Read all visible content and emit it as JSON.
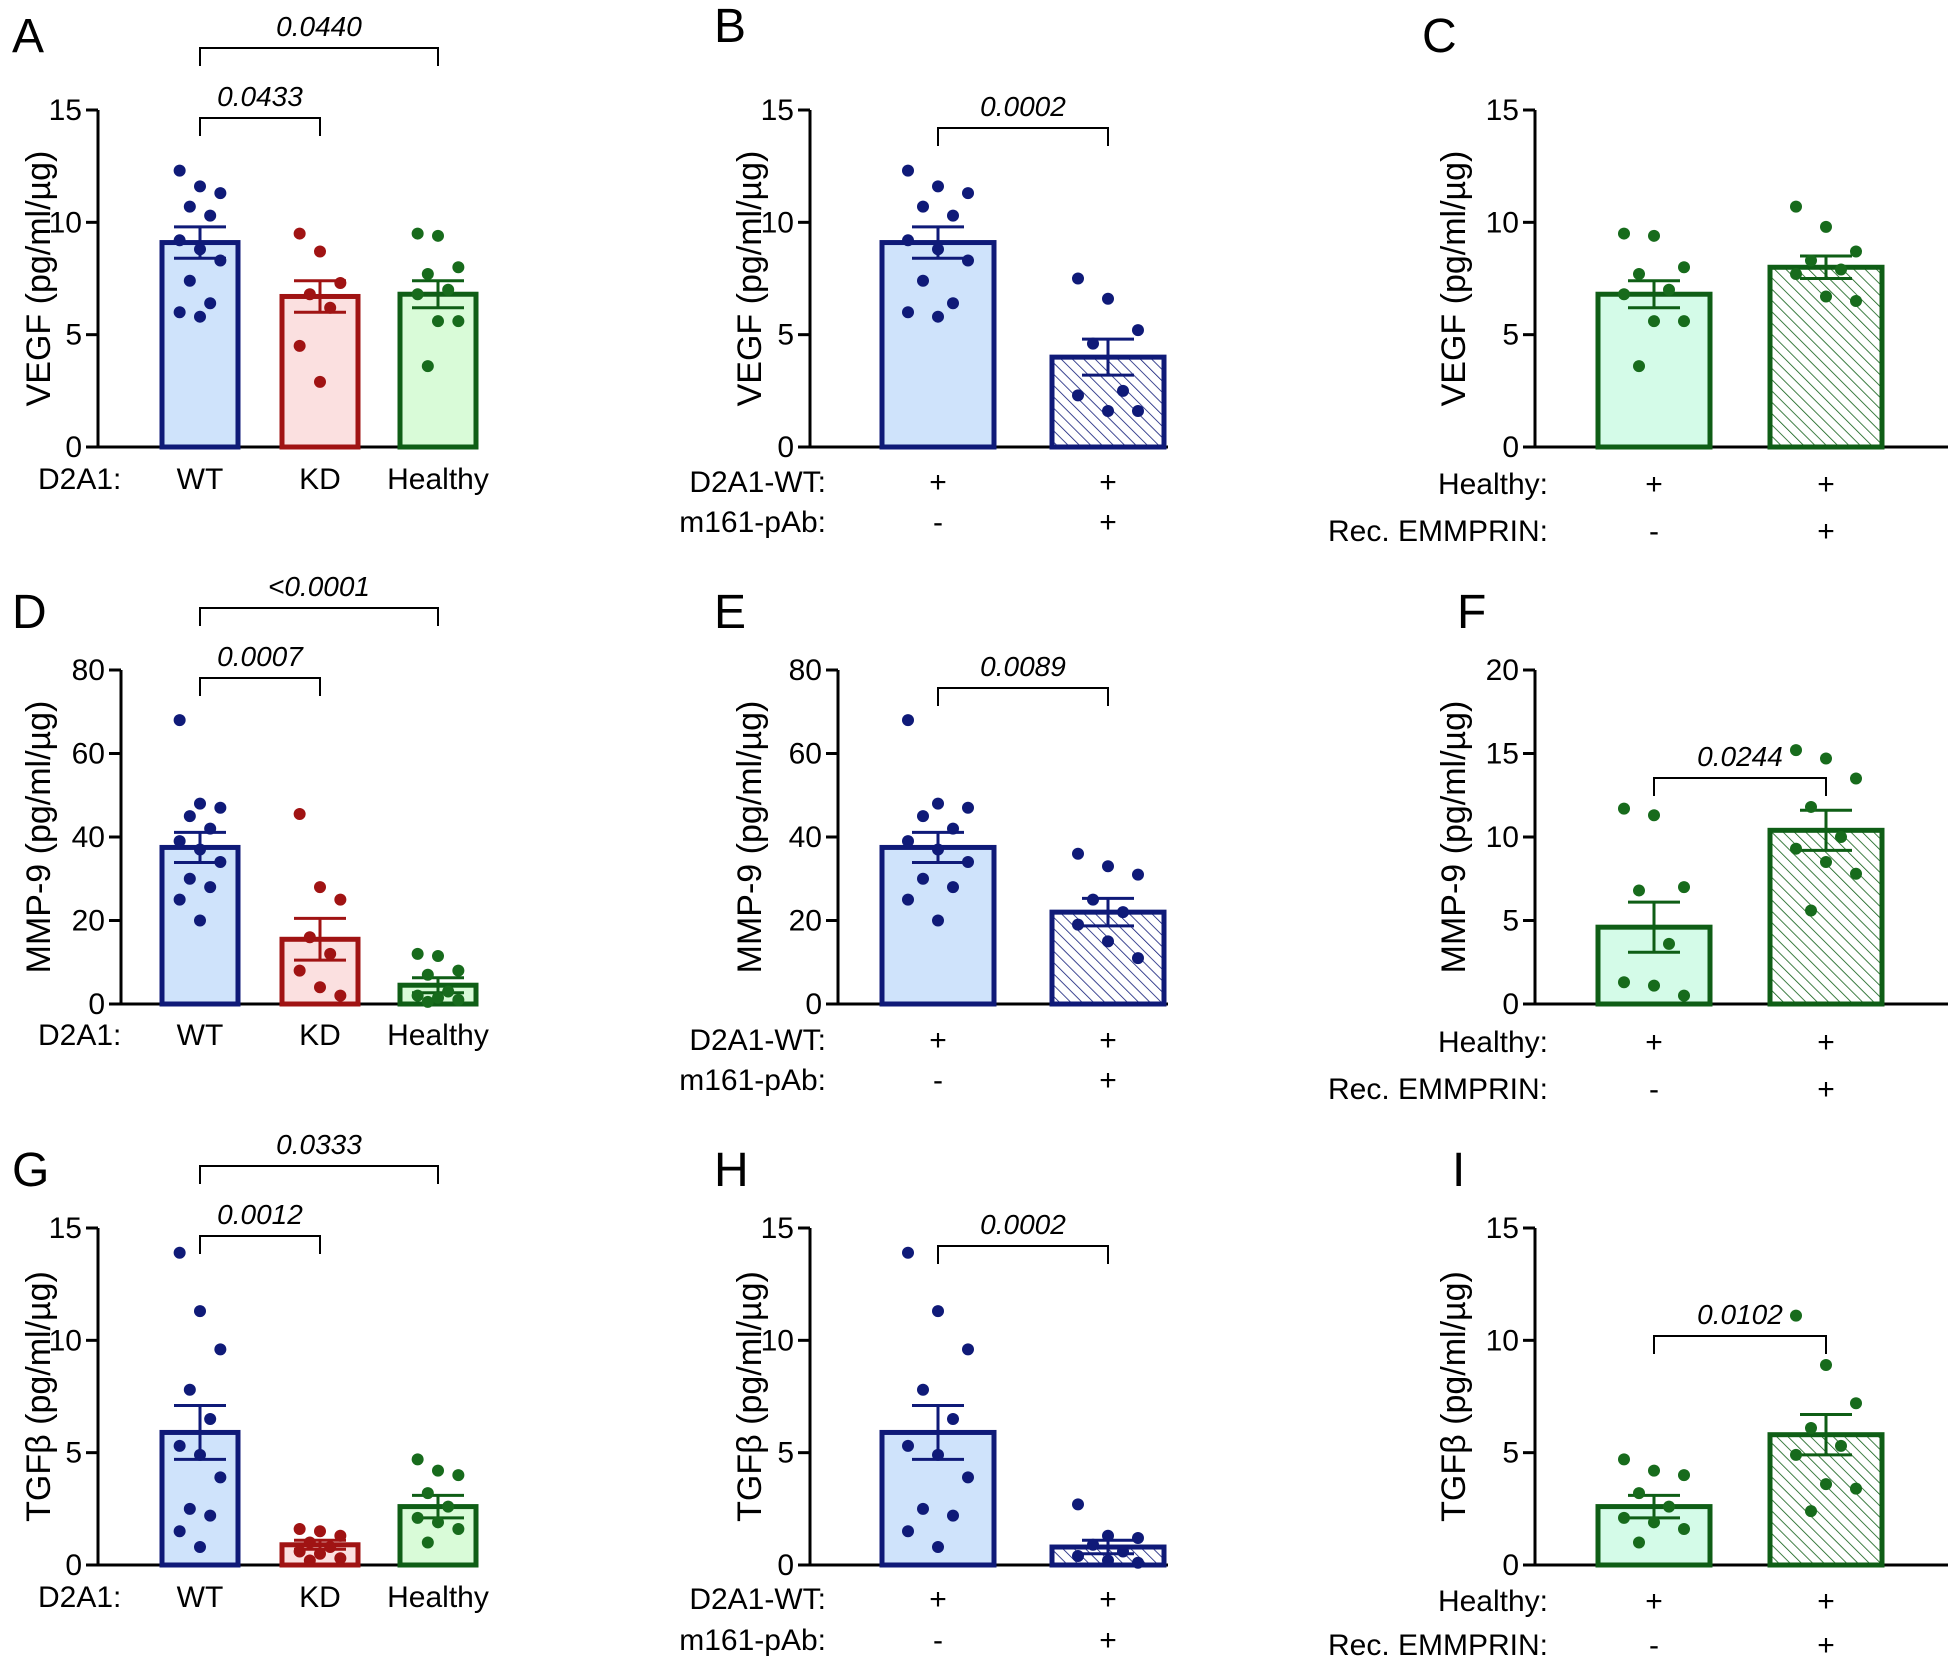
{
  "colors": {
    "blue_edge": "#0f1a78",
    "blue_fill": "#cfe3fb",
    "red_edge": "#a01313",
    "red_fill": "#fbe0e0",
    "green_edge": "#0f5e16",
    "green_fill": "#d9fbd8",
    "mint_fill": "#d4fbe8",
    "dot_blue": "#0f1a78",
    "dot_red": "#a01313",
    "dot_green": "#176b1c"
  },
  "chart_data": [
    {
      "panel": "A",
      "type": "bar",
      "ylabel": "VEGF (pg/ml/µg)",
      "ylim": [
        0,
        15
      ],
      "yticks": [
        0,
        5,
        10,
        15
      ],
      "rows": [
        {
          "label": "D2A1:",
          "values": [
            "WT",
            "KD",
            "Healthy"
          ]
        }
      ],
      "bars": [
        {
          "mean": 9.1,
          "sem": 0.7,
          "color": "blue",
          "fill": "blue_fill",
          "hatch": false,
          "points": [
            12.3,
            11.6,
            11.3,
            10.7,
            10.3,
            9.2,
            8.8,
            8.3,
            7.4,
            6.4,
            6.0,
            5.8
          ]
        },
        {
          "mean": 6.7,
          "sem": 0.7,
          "color": "red",
          "fill": "red_fill",
          "hatch": false,
          "points": [
            9.5,
            8.7,
            7.3,
            6.8,
            6.2,
            4.5,
            2.9
          ]
        },
        {
          "mean": 6.8,
          "sem": 0.6,
          "color": "green",
          "fill": "green_fill",
          "hatch": false,
          "points": [
            9.5,
            9.4,
            8.0,
            7.7,
            7.0,
            6.8,
            5.6,
            5.6,
            3.6
          ]
        }
      ],
      "brackets": [
        {
          "from": 0,
          "to": 1,
          "label": "0.0433",
          "level": 0
        },
        {
          "from": 0,
          "to": 2,
          "label": "0.0440",
          "level": 1
        }
      ]
    },
    {
      "panel": "B",
      "type": "bar",
      "ylabel": "VEGF (pg/ml/µg)",
      "ylim": [
        0,
        15
      ],
      "yticks": [
        0,
        5,
        10,
        15
      ],
      "rows": [
        {
          "label": "D2A1-WT:",
          "values": [
            "+",
            "+"
          ]
        },
        {
          "label": "m161-pAb:",
          "values": [
            "-",
            "+"
          ]
        }
      ],
      "bars": [
        {
          "mean": 9.1,
          "sem": 0.7,
          "color": "blue",
          "fill": "blue_fill",
          "hatch": false,
          "points": [
            12.3,
            11.6,
            11.3,
            10.7,
            10.3,
            9.2,
            8.8,
            8.3,
            7.4,
            6.4,
            6.0,
            5.8
          ]
        },
        {
          "mean": 4.0,
          "sem": 0.8,
          "color": "blue",
          "fill": "blue_fill",
          "hatch": true,
          "points": [
            7.5,
            6.6,
            5.2,
            4.6,
            2.5,
            2.3,
            1.6,
            1.6
          ]
        }
      ],
      "brackets": [
        {
          "from": 0,
          "to": 1,
          "label": "0.0002",
          "level": 0
        }
      ]
    },
    {
      "panel": "C",
      "type": "bar",
      "ylabel": "VEGF (pg/ml/µg)",
      "ylim": [
        0,
        15
      ],
      "yticks": [
        0,
        5,
        10,
        15
      ],
      "rows": [
        {
          "label": "Healthy:",
          "values": [
            "+",
            "+"
          ]
        },
        {
          "label": "Rec.  EMMPRIN:",
          "values": [
            "-",
            "+"
          ]
        }
      ],
      "bars": [
        {
          "mean": 6.8,
          "sem": 0.6,
          "color": "green",
          "fill": "mint_fill",
          "hatch": false,
          "points": [
            9.5,
            9.4,
            8.0,
            7.7,
            7.0,
            6.8,
            5.6,
            5.6,
            3.6
          ]
        },
        {
          "mean": 8.0,
          "sem": 0.5,
          "color": "green",
          "fill": "green_fill",
          "hatch": true,
          "points": [
            10.7,
            9.8,
            8.7,
            8.3,
            7.9,
            7.7,
            6.7,
            6.5
          ]
        }
      ],
      "brackets": []
    },
    {
      "panel": "D",
      "type": "bar",
      "ylabel": "MMP-9 (pg/ml/µg)",
      "ylim": [
        0,
        80
      ],
      "yticks": [
        0,
        20,
        40,
        60,
        80
      ],
      "rows": [
        {
          "label": "D2A1:",
          "values": [
            "WT",
            "KD",
            "Healthy"
          ]
        }
      ],
      "bars": [
        {
          "mean": 37.5,
          "sem": 3.6,
          "color": "blue",
          "fill": "blue_fill",
          "hatch": false,
          "points": [
            68,
            48,
            47,
            45,
            42,
            39,
            37,
            34,
            30,
            28,
            25,
            20
          ]
        },
        {
          "mean": 15.5,
          "sem": 5.0,
          "color": "red",
          "fill": "red_fill",
          "hatch": false,
          "points": [
            45.5,
            28,
            25,
            16,
            12,
            8,
            4,
            2
          ]
        },
        {
          "mean": 4.5,
          "sem": 1.8,
          "color": "green",
          "fill": "green_fill",
          "hatch": false,
          "points": [
            12,
            11.5,
            8,
            7,
            3,
            2,
            1.5,
            1,
            0.5
          ]
        }
      ],
      "brackets": [
        {
          "from": 0,
          "to": 1,
          "label": "0.0007",
          "level": 0
        },
        {
          "from": 0,
          "to": 2,
          "label": "<0.0001",
          "level": 1
        }
      ]
    },
    {
      "panel": "E",
      "type": "bar",
      "ylabel": "MMP-9 (pg/ml/µg)",
      "ylim": [
        0,
        80
      ],
      "yticks": [
        0,
        20,
        40,
        60,
        80
      ],
      "rows": [
        {
          "label": "D2A1-WT:",
          "values": [
            "+",
            "+"
          ]
        },
        {
          "label": "m161-pAb:",
          "values": [
            "-",
            "+"
          ]
        }
      ],
      "bars": [
        {
          "mean": 37.5,
          "sem": 3.6,
          "color": "blue",
          "fill": "blue_fill",
          "hatch": false,
          "points": [
            68,
            48,
            47,
            45,
            42,
            39,
            37,
            34,
            30,
            28,
            25,
            20
          ]
        },
        {
          "mean": 22.0,
          "sem": 3.3,
          "color": "blue",
          "fill": "blue_fill",
          "hatch": true,
          "points": [
            36,
            33,
            31,
            25,
            22,
            19,
            15,
            11
          ]
        }
      ],
      "brackets": [
        {
          "from": 0,
          "to": 1,
          "label": "0.0089",
          "level": 0
        }
      ]
    },
    {
      "panel": "F",
      "type": "bar",
      "ylabel": "MMP-9 (pg/ml/µg)",
      "ylim": [
        0,
        20
      ],
      "yticks": [
        0,
        5,
        10,
        15,
        20
      ],
      "rows": [
        {
          "label": "Healthy:",
          "values": [
            "+",
            "+"
          ]
        },
        {
          "label": "Rec.  EMMPRIN:",
          "values": [
            "-",
            "+"
          ]
        }
      ],
      "bars": [
        {
          "mean": 4.6,
          "sem": 1.5,
          "color": "green",
          "fill": "mint_fill",
          "hatch": false,
          "points": [
            11.7,
            11.3,
            7.0,
            6.8,
            3.6,
            1.3,
            1.1,
            0.5
          ]
        },
        {
          "mean": 10.4,
          "sem": 1.2,
          "color": "green",
          "fill": "green_fill",
          "hatch": true,
          "points": [
            15.2,
            14.7,
            13.5,
            11.8,
            10.0,
            9.3,
            8.5,
            7.8,
            5.6
          ]
        }
      ],
      "brackets": [
        {
          "from": 0,
          "to": 1,
          "label": "0.0244",
          "level": 0
        }
      ]
    },
    {
      "panel": "G",
      "type": "bar",
      "ylabel": "TGFβ (pg/ml/µg)",
      "ylim": [
        0,
        15
      ],
      "yticks": [
        0,
        5,
        10,
        15
      ],
      "rows": [
        {
          "label": "D2A1:",
          "values": [
            "WT",
            "KD",
            "Healthy"
          ]
        }
      ],
      "bars": [
        {
          "mean": 5.9,
          "sem": 1.2,
          "color": "blue",
          "fill": "blue_fill",
          "hatch": false,
          "points": [
            13.9,
            11.3,
            9.6,
            7.8,
            6.5,
            5.3,
            4.9,
            3.9,
            2.5,
            2.2,
            1.5,
            0.8
          ]
        },
        {
          "mean": 0.9,
          "sem": 0.2,
          "color": "red",
          "fill": "red_fill",
          "hatch": false,
          "points": [
            1.6,
            1.5,
            1.3,
            1.0,
            0.8,
            0.6,
            0.5,
            0.3,
            0.2
          ]
        },
        {
          "mean": 2.6,
          "sem": 0.5,
          "color": "green",
          "fill": "green_fill",
          "hatch": false,
          "points": [
            4.7,
            4.2,
            4.0,
            3.2,
            2.6,
            2.1,
            1.9,
            1.6,
            1.0
          ]
        }
      ],
      "brackets": [
        {
          "from": 0,
          "to": 1,
          "label": "0.0012",
          "level": 0
        },
        {
          "from": 0,
          "to": 2,
          "label": "0.0333",
          "level": 1
        }
      ]
    },
    {
      "panel": "H",
      "type": "bar",
      "ylabel": "TGFβ (pg/ml/µg)",
      "ylim": [
        0,
        15
      ],
      "yticks": [
        0,
        5,
        10,
        15
      ],
      "rows": [
        {
          "label": "D2A1-WT:",
          "values": [
            "+",
            "+"
          ]
        },
        {
          "label": "m161-pAb:",
          "values": [
            "-",
            "+"
          ]
        }
      ],
      "bars": [
        {
          "mean": 5.9,
          "sem": 1.2,
          "color": "blue",
          "fill": "blue_fill",
          "hatch": false,
          "points": [
            13.9,
            11.3,
            9.6,
            7.8,
            6.5,
            5.3,
            4.9,
            3.9,
            2.5,
            2.2,
            1.5,
            0.8
          ]
        },
        {
          "mean": 0.8,
          "sem": 0.3,
          "color": "blue",
          "fill": "blue_fill",
          "hatch": true,
          "points": [
            2.7,
            1.3,
            1.2,
            0.9,
            0.6,
            0.4,
            0.2,
            0.1
          ]
        }
      ],
      "brackets": [
        {
          "from": 0,
          "to": 1,
          "label": "0.0002",
          "level": 0
        }
      ]
    },
    {
      "panel": "I",
      "type": "bar",
      "ylabel": "TGFβ (pg/ml/µg)",
      "ylim": [
        0,
        15
      ],
      "yticks": [
        0,
        5,
        10,
        15
      ],
      "rows": [
        {
          "label": "Healthy:",
          "values": [
            "+",
            "+"
          ]
        },
        {
          "label": "Rec.  EMMPRIN:",
          "values": [
            "-",
            "+"
          ]
        }
      ],
      "bars": [
        {
          "mean": 2.6,
          "sem": 0.5,
          "color": "green",
          "fill": "mint_fill",
          "hatch": false,
          "points": [
            4.7,
            4.2,
            4.0,
            3.2,
            2.6,
            2.1,
            1.9,
            1.6,
            1.0
          ]
        },
        {
          "mean": 5.8,
          "sem": 0.9,
          "color": "green",
          "fill": "green_fill",
          "hatch": true,
          "points": [
            11.1,
            8.9,
            7.2,
            6.1,
            5.3,
            4.9,
            3.6,
            3.4,
            2.4
          ]
        }
      ],
      "brackets": [
        {
          "from": 0,
          "to": 1,
          "label": "0.0102",
          "level": 0
        }
      ]
    }
  ]
}
